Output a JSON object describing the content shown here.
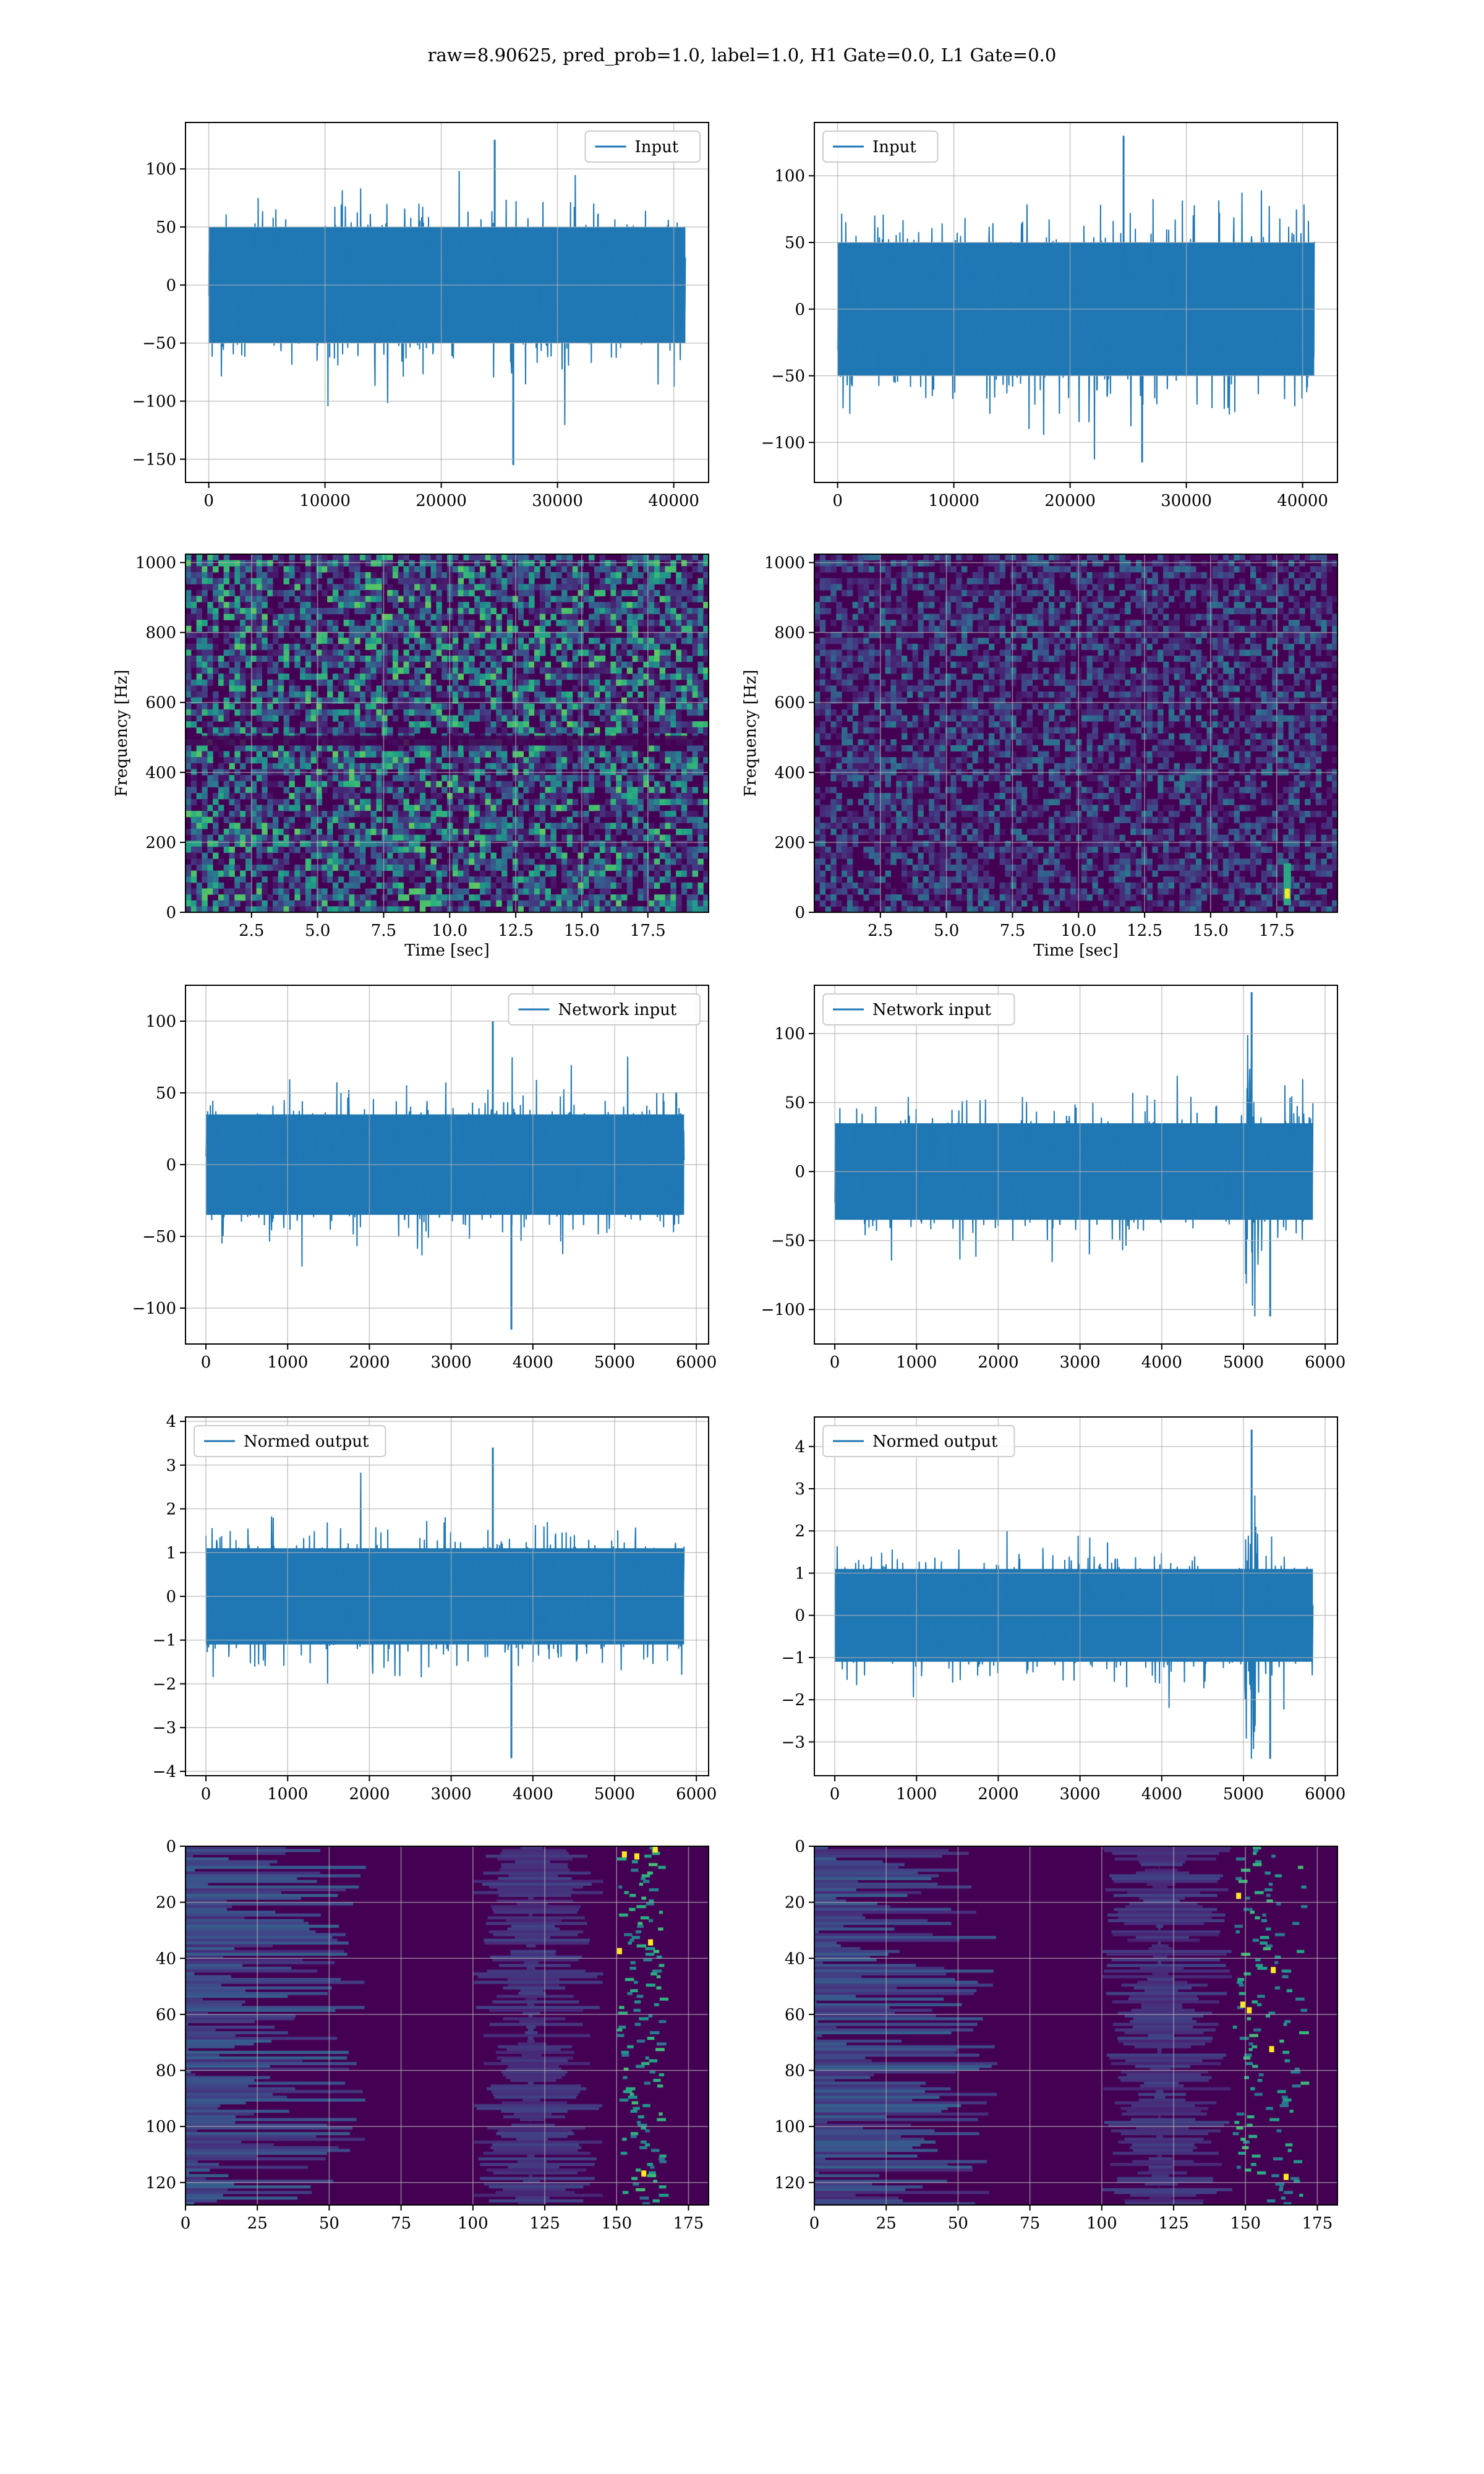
{
  "title": "raw=8.90625, pred_prob=1.0, label=1.0, H1 Gate=0.0, L1 Gate=0.0",
  "colors": {
    "line": "#1f77b4",
    "grid": "#b0b0b0",
    "viridis_low": "#440154",
    "viridis_high": "#fde725"
  },
  "chart_data": [
    {
      "id": "r1-left",
      "type": "line",
      "legend": "Input",
      "legend_loc": "upper right",
      "xlim": [
        -2000,
        43000
      ],
      "ylim": [
        -170,
        140
      ],
      "xticks": [
        0,
        10000,
        20000,
        30000,
        40000
      ],
      "xticklabels": [
        "0",
        "10000",
        "20000",
        "30000",
        "40000"
      ],
      "yticks": [
        100,
        50,
        0,
        -50,
        -100,
        -150
      ],
      "yticklabels": [
        "100",
        "50",
        "0",
        "−50",
        "−100",
        "−150"
      ],
      "series": [
        {
          "values": {
            "x_range": [
              0,
              41000
            ],
            "band": [
              -50,
              50
            ],
            "peaks": [
              125,
              -155
            ]
          }
        }
      ]
    },
    {
      "id": "r1-right",
      "type": "line",
      "legend": "Input",
      "legend_loc": "upper left",
      "xlim": [
        -2000,
        43000
      ],
      "ylim": [
        -130,
        140
      ],
      "xticks": [
        0,
        10000,
        20000,
        30000,
        40000
      ],
      "xticklabels": [
        "0",
        "10000",
        "20000",
        "30000",
        "40000"
      ],
      "yticks": [
        100,
        50,
        0,
        -50,
        -100
      ],
      "yticklabels": [
        "100",
        "50",
        "0",
        "−50",
        "−100"
      ],
      "series": [
        {
          "values": {
            "x_range": [
              0,
              41000
            ],
            "band": [
              -50,
              50
            ],
            "peaks": [
              130,
              -115
            ]
          }
        }
      ]
    },
    {
      "id": "r2-left",
      "type": "heatmap",
      "xlabel": "Time [sec]",
      "ylabel": "Frequency [Hz]",
      "xlim": [
        0,
        19.8
      ],
      "ylim": [
        0,
        1024
      ],
      "xticks": [
        2.5,
        5,
        7.5,
        10,
        12.5,
        15,
        17.5
      ],
      "xticklabels": [
        "2.5",
        "5.0",
        "7.5",
        "10.0",
        "12.5",
        "15.0",
        "17.5"
      ],
      "yticks": [
        0,
        200,
        400,
        600,
        800,
        1000
      ],
      "yticklabels": [
        "0",
        "200",
        "400",
        "600",
        "800",
        "1000"
      ]
    },
    {
      "id": "r2-right",
      "type": "heatmap",
      "xlabel": "Time [sec]",
      "ylabel": "Frequency [Hz]",
      "xlim": [
        0,
        19.8
      ],
      "ylim": [
        0,
        1024
      ],
      "xticks": [
        2.5,
        5,
        7.5,
        10,
        12.5,
        15,
        17.5
      ],
      "xticklabels": [
        "2.5",
        "5.0",
        "7.5",
        "10.0",
        "12.5",
        "15.0",
        "17.5"
      ],
      "yticks": [
        0,
        200,
        400,
        600,
        800,
        1000
      ],
      "yticklabels": [
        "0",
        "200",
        "400",
        "600",
        "800",
        "1000"
      ],
      "highlight": {
        "x": 17.9,
        "y": [
          20,
          140
        ]
      }
    },
    {
      "id": "r3-left",
      "type": "line",
      "legend": "Network input",
      "legend_loc": "upper right",
      "xlim": [
        -250,
        6150
      ],
      "ylim": [
        -125,
        125
      ],
      "xticks": [
        0,
        1000,
        2000,
        3000,
        4000,
        5000,
        6000
      ],
      "xticklabels": [
        "0",
        "1000",
        "2000",
        "3000",
        "4000",
        "5000",
        "6000"
      ],
      "yticks": [
        100,
        50,
        0,
        -50,
        -100
      ],
      "yticklabels": [
        "100",
        "50",
        "0",
        "−50",
        "−100"
      ],
      "series": [
        {
          "values": {
            "x_range": [
              0,
              5850
            ],
            "band": [
              -35,
              35
            ],
            "peaks": [
              100,
              -115
            ]
          }
        }
      ]
    },
    {
      "id": "r3-right",
      "type": "line",
      "legend": "Network input",
      "legend_loc": "upper left",
      "xlim": [
        -250,
        6150
      ],
      "ylim": [
        -125,
        135
      ],
      "xticks": [
        0,
        1000,
        2000,
        3000,
        4000,
        5000,
        6000
      ],
      "xticklabels": [
        "0",
        "1000",
        "2000",
        "3000",
        "4000",
        "5000",
        "6000"
      ],
      "yticks": [
        100,
        50,
        0,
        -50,
        -100
      ],
      "yticklabels": [
        "100",
        "50",
        "0",
        "−50",
        "−100"
      ],
      "series": [
        {
          "values": {
            "x_range": [
              0,
              5850
            ],
            "band": [
              -35,
              35
            ],
            "peaks": [
              130,
              -105
            ],
            "burst_x": 5100
          }
        }
      ]
    },
    {
      "id": "r4-left",
      "type": "line",
      "legend": "Normed output",
      "legend_loc": "upper left",
      "xlim": [
        -250,
        6150
      ],
      "ylim": [
        -4.1,
        4.1
      ],
      "xticks": [
        0,
        1000,
        2000,
        3000,
        4000,
        5000,
        6000
      ],
      "xticklabels": [
        "0",
        "1000",
        "2000",
        "3000",
        "4000",
        "5000",
        "6000"
      ],
      "yticks": [
        4,
        3,
        2,
        1,
        0,
        -1,
        -2,
        -3,
        -4
      ],
      "yticklabels": [
        "4",
        "3",
        "2",
        "1",
        "0",
        "−1",
        "−2",
        "−3",
        "−4"
      ],
      "series": [
        {
          "values": {
            "x_range": [
              0,
              5850
            ],
            "band": [
              -1.1,
              1.1
            ],
            "peaks": [
              3.4,
              -3.7
            ]
          }
        }
      ]
    },
    {
      "id": "r4-right",
      "type": "line",
      "legend": "Normed output",
      "legend_loc": "upper left",
      "xlim": [
        -250,
        6150
      ],
      "ylim": [
        -3.8,
        4.7
      ],
      "xticks": [
        0,
        1000,
        2000,
        3000,
        4000,
        5000,
        6000
      ],
      "xticklabels": [
        "0",
        "1000",
        "2000",
        "3000",
        "4000",
        "5000",
        "6000"
      ],
      "yticks": [
        4,
        3,
        2,
        1,
        0,
        -1,
        -2,
        -3
      ],
      "yticklabels": [
        "4",
        "3",
        "2",
        "1",
        "0",
        "−1",
        "−2",
        "−3"
      ],
      "series": [
        {
          "values": {
            "x_range": [
              0,
              5850
            ],
            "band": [
              -1.1,
              1.1
            ],
            "peaks": [
              4.4,
              -3.4
            ],
            "burst_x": 5100
          }
        }
      ]
    },
    {
      "id": "r5-left",
      "type": "heatmap",
      "xlim": [
        0,
        182
      ],
      "ylim": [
        128,
        0
      ],
      "xticks": [
        0,
        25,
        50,
        75,
        100,
        125,
        150,
        175
      ],
      "xticklabels": [
        "0",
        "25",
        "50",
        "75",
        "100",
        "125",
        "150",
        "175"
      ],
      "yticks": [
        0,
        20,
        40,
        60,
        80,
        100,
        120
      ],
      "yticklabels": [
        "0",
        "20",
        "40",
        "60",
        "80",
        "100",
        "120"
      ],
      "highlight": {
        "x": [
          150,
          165
        ]
      }
    },
    {
      "id": "r5-right",
      "type": "heatmap",
      "xlim": [
        0,
        182
      ],
      "ylim": [
        128,
        0
      ],
      "xticks": [
        0,
        25,
        50,
        75,
        100,
        125,
        150,
        175
      ],
      "xticklabels": [
        "0",
        "25",
        "50",
        "75",
        "100",
        "125",
        "150",
        "175"
      ],
      "yticks": [
        0,
        20,
        40,
        60,
        80,
        100,
        120
      ],
      "yticklabels": [
        "0",
        "20",
        "40",
        "60",
        "80",
        "100",
        "120"
      ],
      "highlight": {
        "x": [
          145,
          170
        ]
      }
    }
  ]
}
